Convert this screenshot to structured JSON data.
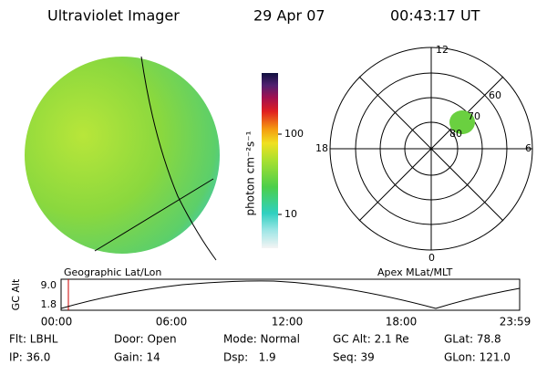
{
  "header": {
    "title": "Ultraviolet Imager",
    "date": "29 Apr 07",
    "time": "00:43:17 UT"
  },
  "geo_panel": {
    "label": "Geographic Lat/Lon"
  },
  "colorbar": {
    "label": "photon cm⁻²s⁻¹",
    "ticks": [
      100,
      10
    ]
  },
  "polar_panel": {
    "label": "Apex MLat/MLT",
    "mlt_labels": [
      12,
      18,
      6,
      0
    ],
    "mlat_labels": [
      60,
      70,
      80
    ]
  },
  "altitude_plot": {
    "ylabel": "GC Alt",
    "yticks": [
      "9.0",
      1.8
    ],
    "xticks": [
      "00:00",
      "06:00",
      "12:00",
      "18:00",
      "23:59"
    ]
  },
  "footer": {
    "rows": [
      [
        "Flt: LBHL",
        "Door: Open",
        "Mode: Normal",
        "GC Alt: 2.1 Re",
        "GLat: 78.8"
      ],
      [
        "IP: 36.0",
        "Gain: 14",
        "Dsp:   1.9",
        "Seq: 39",
        "GLon: 121.0"
      ]
    ]
  }
}
